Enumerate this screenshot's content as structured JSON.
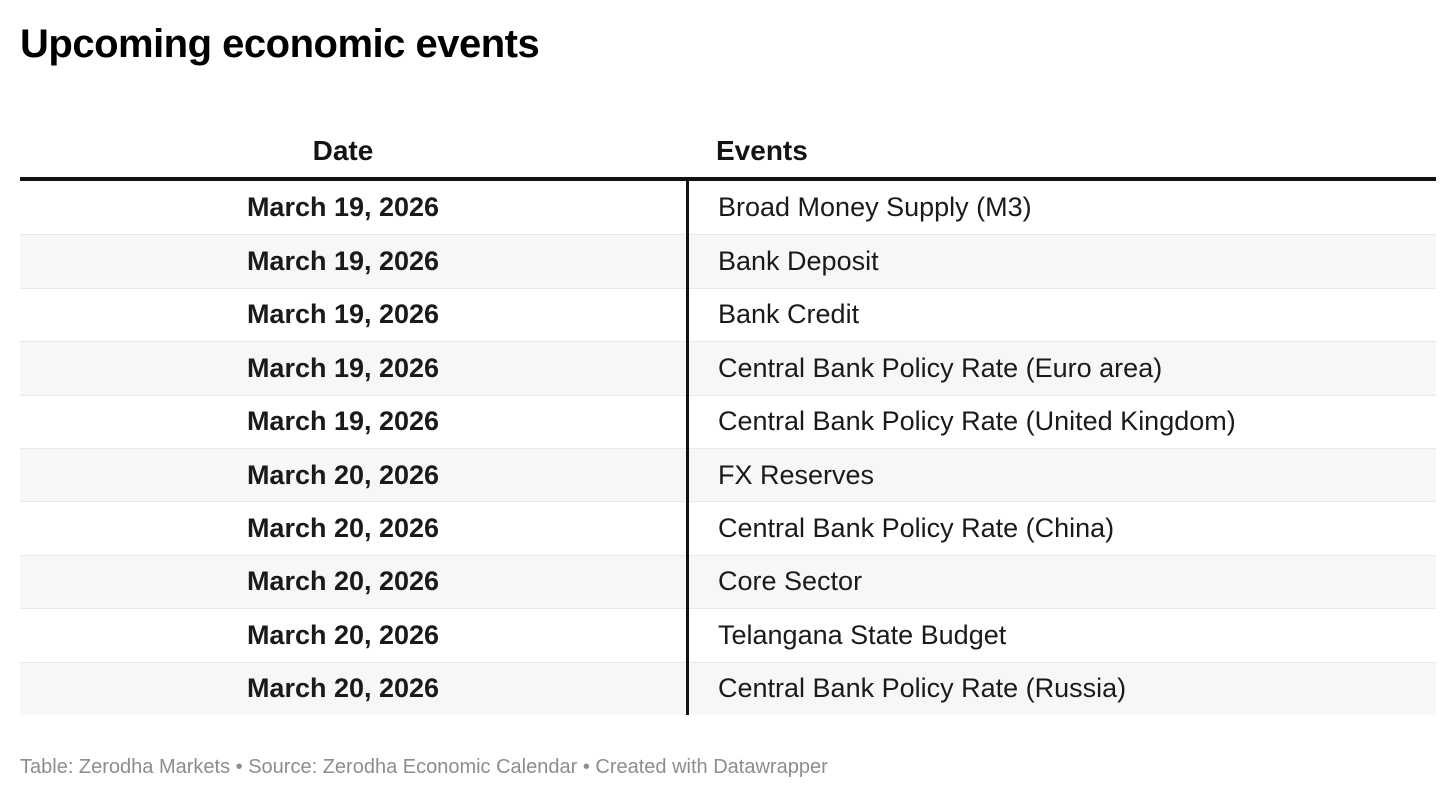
{
  "title": "Upcoming economic events",
  "chart_data": {
    "type": "table",
    "title": "Upcoming economic events",
    "columns": [
      "Date",
      "Events"
    ],
    "rows": [
      [
        "March 19, 2026",
        "Broad Money Supply (M3)"
      ],
      [
        "March 19, 2026",
        "Bank Deposit"
      ],
      [
        "March 19, 2026",
        "Bank Credit"
      ],
      [
        "March 19, 2026",
        "Central Bank Policy Rate (Euro area)"
      ],
      [
        "March 19, 2026",
        "Central Bank Policy Rate (United Kingdom)"
      ],
      [
        "March 20, 2026",
        "FX Reserves"
      ],
      [
        "March 20, 2026",
        "Central Bank Policy Rate (China)"
      ],
      [
        "March 20, 2026",
        "Core Sector"
      ],
      [
        "March 20, 2026",
        "Telangana State Budget"
      ],
      [
        "March 20, 2026",
        "Central Bank Policy Rate (Russia)"
      ]
    ],
    "layout_hints": {
      "alternating_row_shading": true,
      "date_column_alignment": "center",
      "events_column_alignment": "left"
    }
  },
  "footer": {
    "text": "Table: Zerodha Markets • Source: Zerodha Economic Calendar • Created with Datawrapper"
  },
  "colors": {
    "header_border": "#121212",
    "column_divider": "#121212",
    "row_alt_background": "#f7f7f7",
    "row_separator": "#e9e9e9",
    "body_text": "#1a1a1a",
    "title_text": "#000000",
    "footer_text": "#8d8d8d"
  }
}
